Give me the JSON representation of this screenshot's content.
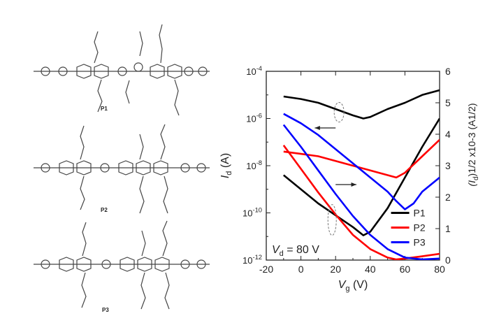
{
  "structures": [
    {
      "label": "P1"
    },
    {
      "label": "P2"
    },
    {
      "label": "P3"
    }
  ],
  "chart_data": {
    "type": "line",
    "xlabel": "V",
    "xlabel_sub": "g",
    "xlabel_unit": "(V)",
    "ylabel_left": "I",
    "ylabel_left_sub": "d",
    "ylabel_left_unit": "(A)",
    "ylabel_right": "(I",
    "ylabel_right_sub": "d",
    "ylabel_right_unit": ")1/2 x10-3 (A1/2)",
    "xlim": [
      -20,
      80
    ],
    "ylim_left_log10": [
      -12,
      -4
    ],
    "ylim_right": [
      0,
      6
    ],
    "x_ticks": [
      "-20",
      "0",
      "20",
      "40",
      "60",
      "80"
    ],
    "y_left_ticks": [
      "10-12",
      "10-10",
      "10-8",
      "10-6",
      "10-4"
    ],
    "y_right_ticks": [
      "0",
      "1",
      "2",
      "3",
      "4",
      "5",
      "6"
    ],
    "annotation": {
      "text_prefix": "V",
      "text_sub": "d",
      "text_suffix": " = 80 V"
    },
    "legend": {
      "placement": "bottom-right"
    },
    "series": [
      {
        "name": "P1",
        "color": "#000000",
        "transfer_log10": [
          [
            -10,
            -8.4
          ],
          [
            0,
            -9.0
          ],
          [
            10,
            -9.6
          ],
          [
            20,
            -10.1
          ],
          [
            30,
            -10.6
          ],
          [
            36,
            -10.95
          ],
          [
            40,
            -10.8
          ],
          [
            50,
            -9.8
          ],
          [
            60,
            -8.5
          ],
          [
            70,
            -7.2
          ],
          [
            80,
            -6.0
          ]
        ],
        "sqrt": [
          [
            -10,
            5.2
          ],
          [
            0,
            5.12
          ],
          [
            10,
            5.0
          ],
          [
            20,
            4.8
          ],
          [
            30,
            4.6
          ],
          [
            36,
            4.5
          ],
          [
            40,
            4.55
          ],
          [
            50,
            4.8
          ],
          [
            60,
            5.0
          ],
          [
            70,
            5.25
          ],
          [
            80,
            5.4
          ]
        ]
      },
      {
        "name": "P2",
        "color": "#ff0000",
        "transfer_log10": [
          [
            -10,
            -7.4
          ],
          [
            0,
            -7.5
          ],
          [
            10,
            -7.6
          ],
          [
            20,
            -7.8
          ],
          [
            30,
            -8.0
          ],
          [
            40,
            -8.2
          ],
          [
            50,
            -8.4
          ],
          [
            55,
            -8.5
          ],
          [
            60,
            -8.3
          ],
          [
            70,
            -7.6
          ],
          [
            80,
            -6.9
          ]
        ],
        "sqrt": [
          [
            -10,
            3.65
          ],
          [
            0,
            2.9
          ],
          [
            10,
            2.15
          ],
          [
            20,
            1.45
          ],
          [
            30,
            0.8
          ],
          [
            40,
            0.35
          ],
          [
            50,
            0.08
          ],
          [
            55,
            0.02
          ],
          [
            60,
            0.05
          ],
          [
            70,
            0.12
          ],
          [
            80,
            0.2
          ]
        ]
      },
      {
        "name": "P3",
        "color": "#0000ff",
        "transfer_log10": [
          [
            -10,
            -5.8
          ],
          [
            0,
            -6.2
          ],
          [
            10,
            -6.7
          ],
          [
            20,
            -7.3
          ],
          [
            30,
            -7.9
          ],
          [
            40,
            -8.5
          ],
          [
            50,
            -9.1
          ],
          [
            55,
            -9.5
          ],
          [
            60,
            -9.85
          ],
          [
            65,
            -9.6
          ],
          [
            70,
            -9.1
          ],
          [
            80,
            -8.5
          ]
        ],
        "sqrt": [
          [
            -10,
            4.3
          ],
          [
            0,
            3.6
          ],
          [
            10,
            2.85
          ],
          [
            20,
            2.1
          ],
          [
            30,
            1.4
          ],
          [
            40,
            0.8
          ],
          [
            50,
            0.35
          ],
          [
            60,
            0.08
          ],
          [
            70,
            0.02
          ],
          [
            80,
            0.05
          ]
        ]
      }
    ]
  }
}
